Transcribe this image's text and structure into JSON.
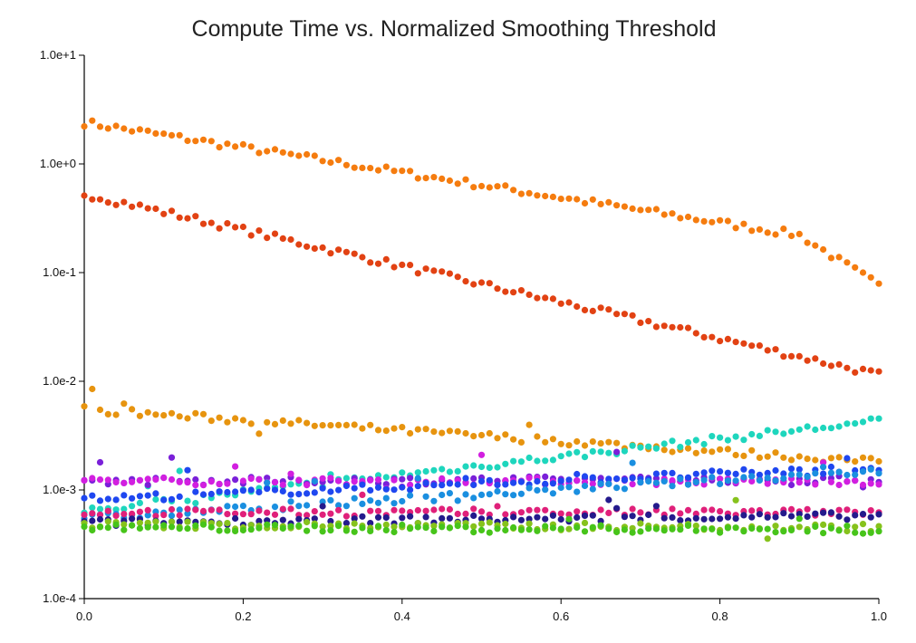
{
  "chart_data": {
    "type": "scatter",
    "title": "Compute Time vs. Normalized Smoothing Threshold",
    "xlabel": "",
    "ylabel": "",
    "xlim": [
      0,
      1
    ],
    "ylim": [
      0.0001,
      10
    ],
    "y_scale": "log",
    "grid": false,
    "x_ticks": [
      "0.0",
      "0.2",
      "0.4",
      "0.6",
      "0.8",
      "1.0"
    ],
    "y_ticks": [
      "1.0e-4",
      "1.0e-3",
      "1.0e-2",
      "1.0e-1",
      "1.0e+0",
      "1.0e+1"
    ],
    "series": [
      {
        "color": "#f57c0f",
        "y_start": 2.4,
        "y_end": 0.17
      },
      {
        "color": "#e24213",
        "y_start": 0.53,
        "y_end": 0.0115
      },
      {
        "color": "#e7940f",
        "y_start": 0.0055,
        "y_end": 0.0018
      },
      {
        "color": "#1ed6bd",
        "y_start": 0.00065,
        "y_end": 0.0043
      },
      {
        "color": "#7a20d9",
        "y_start": 0.0012,
        "y_end": 0.00125
      },
      {
        "color": "#d21fe0",
        "y_start": 0.0012,
        "y_end": 0.0012
      },
      {
        "color": "#1f47f0",
        "y_start": 0.00082,
        "y_end": 0.0016
      },
      {
        "color": "#1a8fe0",
        "y_start": 0.00055,
        "y_end": 0.0015
      },
      {
        "color": "#e0207a",
        "y_start": 0.00062,
        "y_end": 0.00062
      },
      {
        "color": "#241a8c",
        "y_start": 0.0005,
        "y_end": 0.00058
      },
      {
        "color": "#86c21c",
        "y_start": 0.00048,
        "y_end": 0.00045
      },
      {
        "color": "#47c41a",
        "y_start": 0.00045,
        "y_end": 0.00043
      }
    ]
  }
}
